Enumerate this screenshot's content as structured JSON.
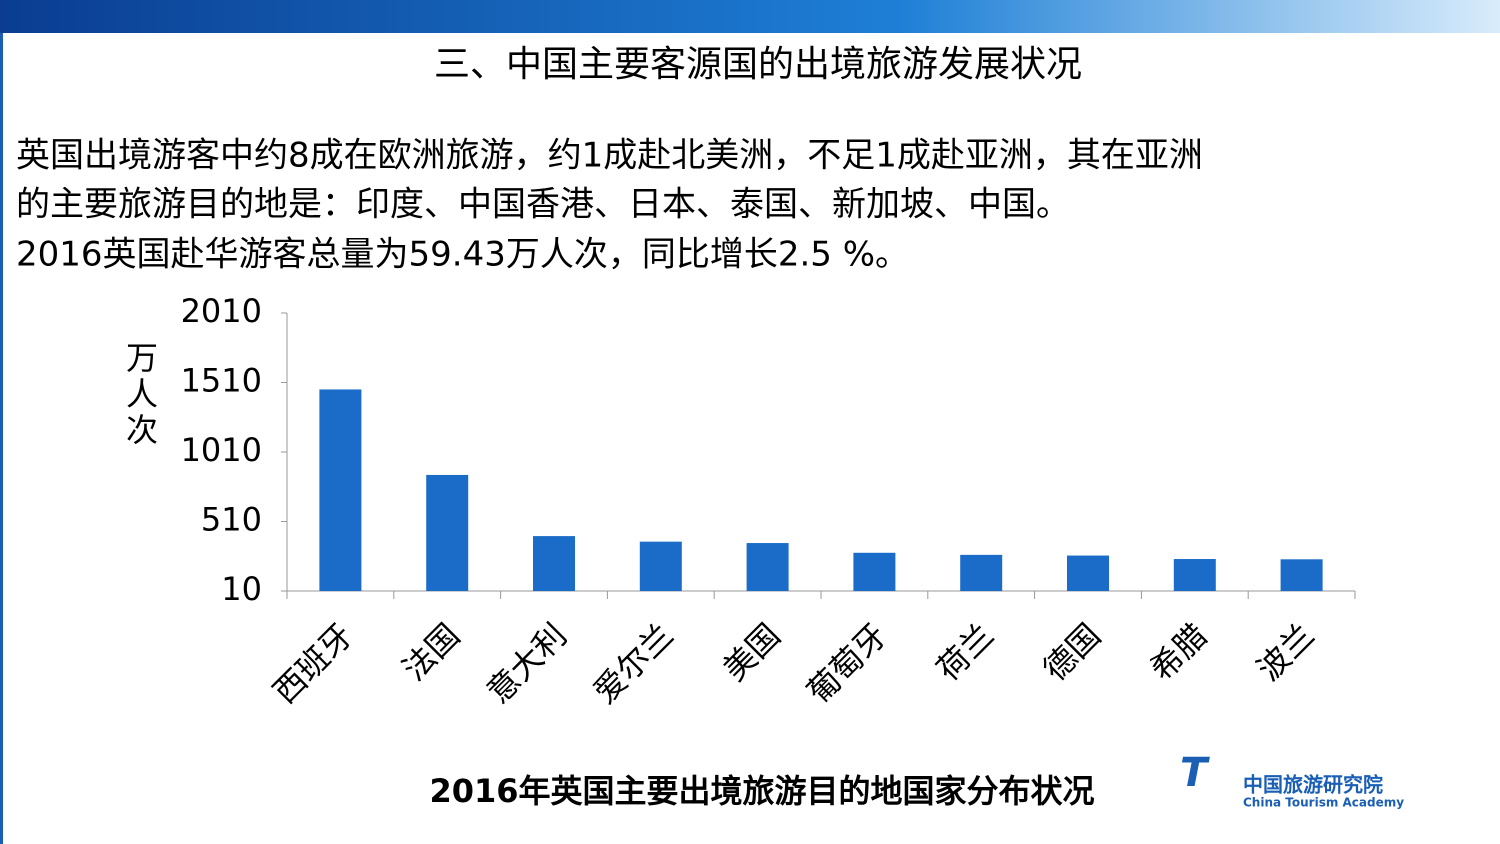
{
  "slide": {
    "heading": "三、中国主要客源国的出境旅游发展状况",
    "lines": [
      "英国出境游客中约8成在欧洲旅游，约1成赴北美洲，不足1成赴亚洲，其在亚洲",
      "的主要旅游目的地是：印度、中国香港、日本、泰国、新加坡、中国。",
      "2016英国赴华游客总量为59.43万人次，同比增长2.5 %。"
    ],
    "logo_name": "中国旅游研究院",
    "logo_english": "China Tourism Academy"
  },
  "chart_data": {
    "type": "bar",
    "title": "2016年英国主要出境旅游目的地国家分布状况",
    "y_label": "万人次",
    "categories": [
      "西班牙",
      "法国",
      "意大利",
      "爱尔兰",
      "美国",
      "葡萄牙",
      "荷兰",
      "德国",
      "希腊",
      "波兰"
    ],
    "values": [
      1460,
      845,
      405,
      365,
      355,
      285,
      270,
      265,
      240,
      238
    ],
    "color": "#1a6cc8",
    "ylim": [
      10,
      2010
    ],
    "yticks": [
      10,
      510,
      1010,
      1510,
      2010
    ],
    "grid": false
  }
}
